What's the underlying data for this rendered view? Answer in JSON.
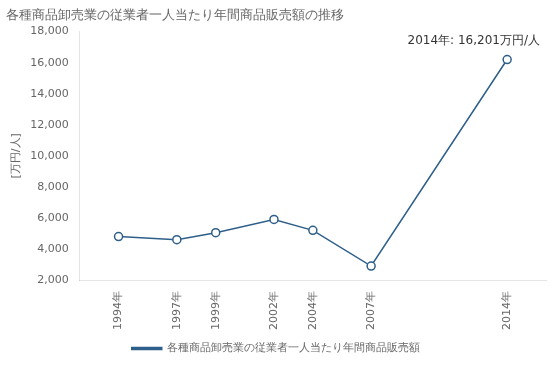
{
  "chart_data": {
    "type": "line",
    "title": "各種商品卸売業の従業者一人当たり年間商品販売額の推移",
    "ylabel": "[万円/人]",
    "annotation": "2014年: 16,201万円/人",
    "x": [
      1994,
      1997,
      1999,
      2002,
      2004,
      2007,
      2014
    ],
    "series": [
      {
        "name": "各種商品卸売業の従業者一人当たり年間商品販売額",
        "color": "#2e5f8a",
        "marker": "circle",
        "values": [
          4800,
          4600,
          5050,
          5900,
          5200,
          2900,
          16201
        ]
      }
    ],
    "xlim": [
      1992,
      2016
    ],
    "xticks": [
      {
        "value": 1994,
        "label": "1994年"
      },
      {
        "value": 1997,
        "label": "1997年"
      },
      {
        "value": 1999,
        "label": "1999年"
      },
      {
        "value": 2002,
        "label": "2002年"
      },
      {
        "value": 2004,
        "label": "2004年"
      },
      {
        "value": 2007,
        "label": "2007年"
      },
      {
        "value": 2014,
        "label": "2014年"
      }
    ],
    "ylim": [
      2000,
      18000
    ],
    "yticks": [
      {
        "value": 2000,
        "label": "2,000"
      },
      {
        "value": 4000,
        "label": "4,000"
      },
      {
        "value": 6000,
        "label": "6,000"
      },
      {
        "value": 8000,
        "label": "8,000"
      },
      {
        "value": 10000,
        "label": "10,000"
      },
      {
        "value": 12000,
        "label": "12,000"
      },
      {
        "value": 14000,
        "label": "14,000"
      },
      {
        "value": 16000,
        "label": "16,000"
      },
      {
        "value": 18000,
        "label": "18,000"
      }
    ],
    "grid": false,
    "legend": "bottom"
  }
}
